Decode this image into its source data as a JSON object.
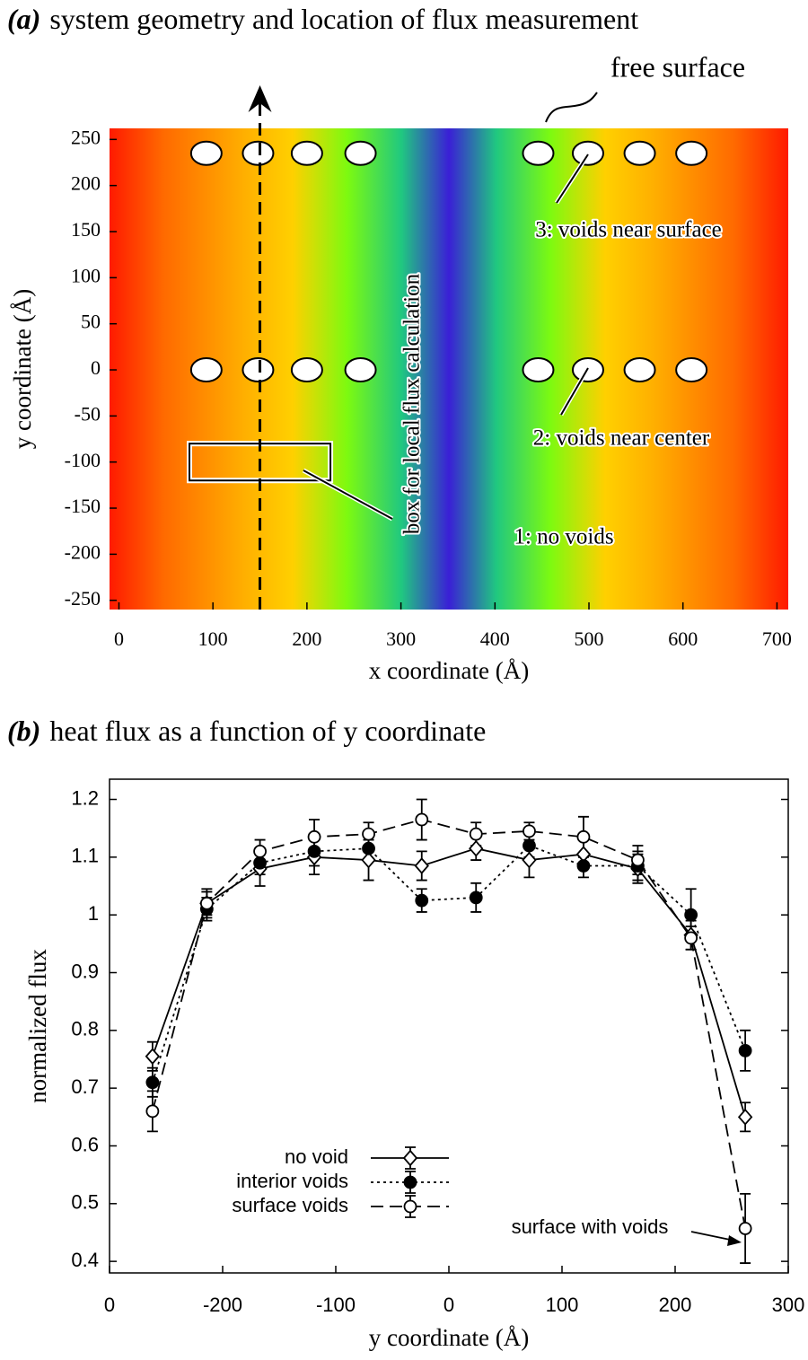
{
  "chart_data": [
    {
      "type": "geometry",
      "label": "(a)",
      "title": "system geometry and location of flux measurement",
      "xlabel": "x coordinate (Å)",
      "ylabel": "y coordinate (Å)",
      "xlim": [
        -10,
        712
      ],
      "ylim": [
        -260,
        262
      ],
      "xticks": [
        0,
        100,
        200,
        300,
        400,
        500,
        600,
        700
      ],
      "yticks": [
        -250,
        -200,
        -150,
        -100,
        -50,
        0,
        50,
        100,
        150,
        200,
        250
      ],
      "voids": {
        "x": [
          93,
          148,
          200,
          257,
          446,
          499,
          554,
          609,
          93,
          148,
          200,
          257,
          446,
          499,
          554,
          609
        ],
        "y": [
          235,
          235,
          235,
          235,
          235,
          235,
          235,
          235,
          0,
          0,
          0,
          0,
          0,
          0,
          0,
          0
        ]
      },
      "flux_line_x": 150,
      "box": {
        "x": [
          75,
          225
        ],
        "y": [
          -120,
          -80
        ]
      },
      "annotations": [
        "free surface",
        "3: voids near surface",
        "2: voids near center",
        "1: no voids",
        "box for local flux calculation"
      ]
    },
    {
      "type": "line",
      "label": "(b)",
      "title": "heat flux as a function of y coordinate",
      "xlabel": "y coordinate (Å)",
      "ylabel": "normalized flux",
      "xlim": [
        -300,
        300
      ],
      "ylim": [
        0.38,
        1.235
      ],
      "xticks": [
        {
          "value": -300,
          "label": "0"
        },
        -200,
        -100,
        0,
        100,
        200,
        300
      ],
      "yticks": [
        0.4,
        0.5,
        0.6,
        0.7,
        0.8,
        0.9,
        1.0,
        1.1,
        1.2
      ],
      "x": [
        -262,
        -214,
        -167,
        -119,
        -71,
        -24,
        24,
        71,
        119,
        167,
        214,
        262
      ],
      "series": [
        {
          "name": "no void",
          "color": "#000000",
          "marker": "diamond",
          "dash": "solid",
          "values": [
            0.755,
            1.02,
            1.08,
            1.1,
            1.095,
            1.085,
            1.115,
            1.095,
            1.105,
            1.08,
            0.965,
            0.65
          ],
          "errors": [
            0.025,
            0.025,
            0.03,
            0.03,
            0.035,
            0.025,
            0.02,
            0.03,
            0.025,
            0.025,
            0.025,
            0.025
          ]
        },
        {
          "name": "interior voids",
          "color": "#000000",
          "marker": "filled-circle",
          "dash": "dotted",
          "values": [
            0.71,
            1.01,
            1.09,
            1.11,
            1.115,
            1.025,
            1.03,
            1.12,
            1.085,
            1.085,
            1.0,
            0.765
          ],
          "errors": [
            0.025,
            0.02,
            0.02,
            0.025,
            0.02,
            0.02,
            0.025,
            0.02,
            0.02,
            0.025,
            0.045,
            0.035
          ]
        },
        {
          "name": "surface voids",
          "color": "#000000",
          "marker": "open-circle",
          "dash": "dashed",
          "values": [
            0.66,
            1.02,
            1.11,
            1.135,
            1.14,
            1.165,
            1.14,
            1.145,
            1.135,
            1.095,
            0.96,
            0.457
          ],
          "errors": [
            0.035,
            0.02,
            0.02,
            0.03,
            0.02,
            0.035,
            0.02,
            0.015,
            0.035,
            0.025,
            0.02,
            0.06
          ]
        }
      ],
      "annotation": "surface with voids"
    }
  ]
}
